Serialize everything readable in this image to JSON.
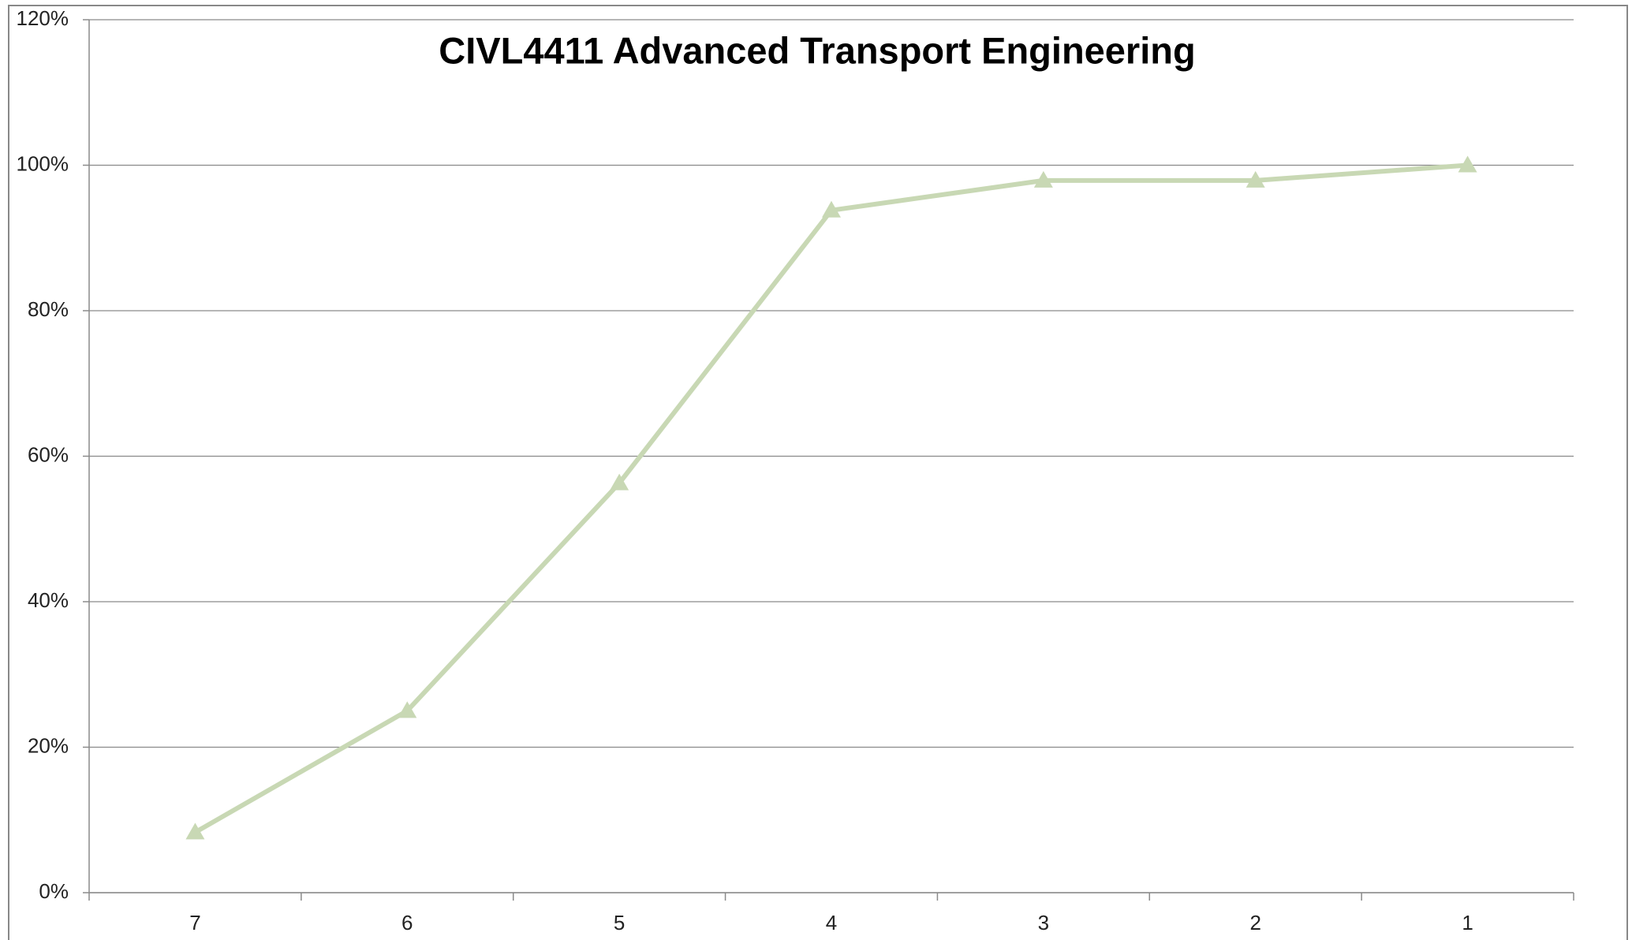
{
  "chart_data": {
    "type": "line",
    "title": "CIVL4411 Advanced Transport Engineering",
    "categories": [
      "7",
      "6",
      "5",
      "4",
      "3",
      "2",
      "1"
    ],
    "series": [
      {
        "color": "#c8d8b4",
        "values": [
          8.3,
          25,
          56.3,
          93.8,
          97.9,
          97.9,
          100
        ]
      }
    ],
    "ylim": [
      0,
      120
    ],
    "yticks": [
      {
        "value": 0,
        "label": "0%"
      },
      {
        "value": 20,
        "label": "20%"
      },
      {
        "value": 40,
        "label": "40%"
      },
      {
        "value": 60,
        "label": "60%"
      },
      {
        "value": 80,
        "label": "80%"
      },
      {
        "value": 100,
        "label": "100%"
      },
      {
        "value": 120,
        "label": "120%"
      }
    ],
    "grid": true
  }
}
